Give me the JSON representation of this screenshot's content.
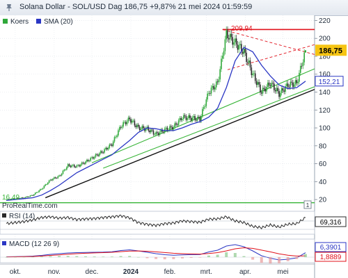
{
  "header": {
    "title": "Solana Dollar - SOL/USD Dag 186,75 +9,87% 21 mei 2024 01:59:59"
  },
  "colors": {
    "up": "#2fa83a",
    "down": "#2a2a2a",
    "sma": "#2a36c4",
    "price_label_bg": "#f6c514",
    "resistance": "#e0101a",
    "channel": "#36b436",
    "support": "#111111",
    "rsi": "#2a2a2a",
    "macd_line": "#2a36c4",
    "signal_line": "#e0101a"
  },
  "legend": {
    "koers": "Koers",
    "sma": "SMA (20)"
  },
  "watermark": "ProRealTime.com",
  "panel_badge": "1",
  "chart_data": [
    {
      "type": "line",
      "title": "Solana Dollar - SOL/USD Dag",
      "x_labels": [
        "okt.",
        "nov.",
        "dec.",
        "2024",
        "feb.",
        "mrt.",
        "apr.",
        "mei"
      ],
      "y_ticks": [
        20,
        40,
        60,
        80,
        100,
        120,
        140,
        160,
        180,
        200,
        220
      ],
      "ylim": [
        10,
        225
      ],
      "series": [
        {
          "name": "Koers",
          "x": [
            "2023-09-24",
            "2023-10-01",
            "2023-10-08",
            "2023-10-15",
            "2023-10-22",
            "2023-10-29",
            "2023-11-05",
            "2023-11-12",
            "2023-11-19",
            "2023-11-26",
            "2023-12-03",
            "2023-12-10",
            "2023-12-17",
            "2023-12-24",
            "2023-12-31",
            "2024-01-07",
            "2024-01-14",
            "2024-01-21",
            "2024-01-28",
            "2024-02-04",
            "2024-02-11",
            "2024-02-18",
            "2024-02-25",
            "2024-03-03",
            "2024-03-10",
            "2024-03-17",
            "2024-03-24",
            "2024-03-31",
            "2024-04-07",
            "2024-04-14",
            "2024-04-21",
            "2024-04-28",
            "2024-05-05",
            "2024-05-12",
            "2024-05-19"
          ],
          "values": [
            20,
            21,
            22,
            25,
            32,
            42,
            46,
            58,
            57,
            62,
            68,
            74,
            82,
            102,
            110,
            100,
            99,
            93,
            98,
            101,
            112,
            111,
            110,
            140,
            150,
            205,
            195,
            185,
            160,
            140,
            150,
            138,
            148,
            150,
            186.75
          ]
        },
        {
          "name": "SMA (20)",
          "x": [
            "2023-09-24",
            "2023-10-01",
            "2023-10-08",
            "2023-10-15",
            "2023-10-22",
            "2023-10-29",
            "2023-11-05",
            "2023-11-12",
            "2023-11-19",
            "2023-11-26",
            "2023-12-03",
            "2023-12-10",
            "2023-12-17",
            "2023-12-24",
            "2023-12-31",
            "2024-01-07",
            "2024-01-14",
            "2024-01-21",
            "2024-01-28",
            "2024-02-04",
            "2024-02-11",
            "2024-02-18",
            "2024-02-25",
            "2024-03-03",
            "2024-03-10",
            "2024-03-17",
            "2024-03-24",
            "2024-03-31",
            "2024-04-07",
            "2024-04-14",
            "2024-04-21",
            "2024-04-28",
            "2024-05-05",
            "2024-05-12",
            "2024-05-19"
          ],
          "values": [
            19,
            20,
            21,
            22,
            25,
            30,
            36,
            43,
            50,
            55,
            60,
            65,
            70,
            78,
            86,
            95,
            100,
            99,
            97,
            97,
            100,
            104,
            107,
            112,
            122,
            145,
            175,
            190,
            185,
            170,
            158,
            148,
            144,
            145,
            152.21
          ]
        }
      ],
      "price_label": "186,75",
      "sma_label": "152,21",
      "support_label": "16,49",
      "levels": [
        {
          "name": "resistance",
          "value": 209.94,
          "label": "209,94"
        },
        {
          "name": "horizontal-support",
          "value": 16.49,
          "label": "16,49"
        }
      ]
    },
    {
      "type": "line",
      "title": "RSI (14)",
      "series": [
        {
          "name": "RSI (14)",
          "values": [
            52,
            55,
            58,
            63,
            70,
            72,
            68,
            70,
            64,
            66,
            67,
            70,
            72,
            75,
            69,
            55,
            50,
            47,
            52,
            54,
            60,
            58,
            56,
            65,
            66,
            72,
            60,
            55,
            44,
            40,
            48,
            42,
            50,
            52,
            69.316
          ]
        }
      ],
      "value_label": "69,316"
    },
    {
      "type": "line",
      "title": "MACD (12 26 9)",
      "series": [
        {
          "name": "MACD",
          "values": [
            0.5,
            0.7,
            1.0,
            1.5,
            2.5,
            4.0,
            5.0,
            6.0,
            6.5,
            6.8,
            7.0,
            7.2,
            7.8,
            9.5,
            10.5,
            9.0,
            7.0,
            5.0,
            3.5,
            2.8,
            3.2,
            3.6,
            3.8,
            7.5,
            10.0,
            16.0,
            18.0,
            15.0,
            9.0,
            2.0,
            -1.5,
            -4.0,
            -3.0,
            -1.0,
            6.3901
          ]
        },
        {
          "name": "Signal",
          "values": [
            0.3,
            0.5,
            0.7,
            1.0,
            1.6,
            2.5,
            3.3,
            4.2,
            5.0,
            5.6,
            6.1,
            6.5,
            7.0,
            7.9,
            8.8,
            8.9,
            8.5,
            7.6,
            6.6,
            5.6,
            5.0,
            4.6,
            4.4,
            5.2,
            6.5,
            9.0,
            12.0,
            13.5,
            12.6,
            10.1,
            7.6,
            4.8,
            2.8,
            1.6,
            1.8889
          ]
        }
      ],
      "macd_label": "6,3901",
      "signal_label": "1,8889"
    }
  ]
}
